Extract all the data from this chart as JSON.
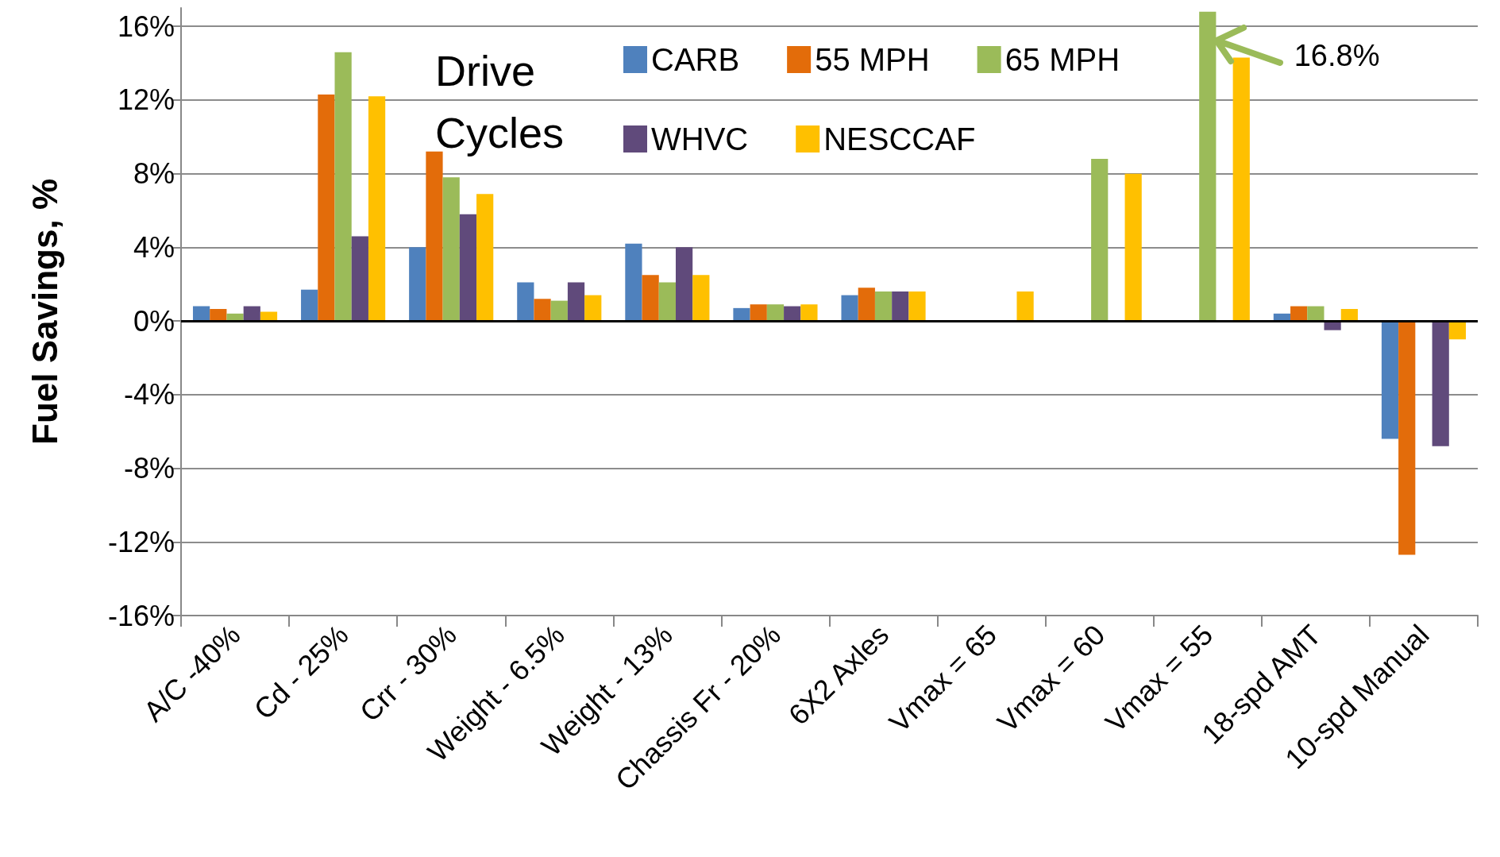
{
  "chart_data": {
    "type": "bar",
    "ylabel": "Fuel Savings, %",
    "legend_title": "Drive Cycles",
    "categories": [
      "A/C -40%",
      "Cd - 25%",
      "Crr - 30%",
      "Weight - 6.5%",
      "Weight - 13%",
      "Chassis Fr - 20%",
      "6X2 Axles",
      "Vmax = 65",
      "Vmax = 60",
      "Vmax = 55",
      "18-spd AMT",
      "10-spd Manual"
    ],
    "series": [
      {
        "name": "CARB",
        "color": "#4f81bd",
        "values": [
          0.8,
          1.7,
          4.0,
          2.1,
          4.2,
          0.7,
          1.4,
          0,
          0,
          0,
          0.4,
          -6.4
        ]
      },
      {
        "name": "55 MPH",
        "color": "#e36c0a",
        "values": [
          0.65,
          12.3,
          9.2,
          1.2,
          2.5,
          0.9,
          1.8,
          0,
          0,
          0,
          0.8,
          -12.7
        ]
      },
      {
        "name": "65 MPH",
        "color": "#9bbb59",
        "values": [
          0.4,
          14.6,
          7.8,
          1.1,
          2.1,
          0.9,
          1.6,
          0,
          8.8,
          16.8,
          0.8,
          0
        ]
      },
      {
        "name": "WHVC",
        "color": "#604a7b",
        "values": [
          0.8,
          4.6,
          5.8,
          2.1,
          4.0,
          0.8,
          1.6,
          0,
          0,
          0,
          -0.5,
          -6.8
        ]
      },
      {
        "name": "NESCCAF",
        "color": "#ffc000",
        "values": [
          0.5,
          12.2,
          6.9,
          1.4,
          2.5,
          0.9,
          1.6,
          1.6,
          8.0,
          14.3,
          0.65,
          -1.0
        ]
      }
    ],
    "ylim": [
      -16,
      17
    ],
    "yticks": [
      {
        "value": -16,
        "label": "-16%"
      },
      {
        "value": -12,
        "label": "-12%"
      },
      {
        "value": -8,
        "label": "-8%"
      },
      {
        "value": -4,
        "label": "-4%"
      },
      {
        "value": 0,
        "label": "0%"
      },
      {
        "value": 4,
        "label": "4%"
      },
      {
        "value": 8,
        "label": "8%"
      },
      {
        "value": 12,
        "label": "12%"
      },
      {
        "value": 16,
        "label": "16%"
      }
    ],
    "ref_lines": [
      {
        "axis": "y",
        "value": 0,
        "color": "#000000"
      }
    ],
    "annotations": [
      {
        "text": "16.8%",
        "x": "Vmax = 55",
        "y": 16.8
      }
    ],
    "grid": "y",
    "legend": "top"
  }
}
